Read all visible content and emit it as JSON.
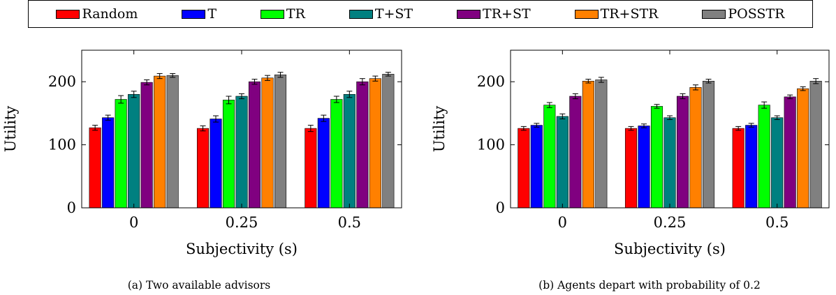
{
  "legend": [
    {
      "name": "Random",
      "color": "#ff0000"
    },
    {
      "name": "T",
      "color": "#0000ff"
    },
    {
      "name": "TR",
      "color": "#00ff00"
    },
    {
      "name": "T+ST",
      "color": "#008080"
    },
    {
      "name": "TR+ST",
      "color": "#800080"
    },
    {
      "name": "TR+STR",
      "color": "#ff8000"
    },
    {
      "name": "POSSTR",
      "color": "#808080"
    }
  ],
  "captions": {
    "a": "(a) Two available advisors",
    "b": "(b) Agents depart with probability of 0.2"
  },
  "chart_data": [
    {
      "type": "bar",
      "xlabel": "Subjectivity (s)",
      "ylabel": "Utility",
      "categories": [
        "0",
        "0.25",
        "0.5"
      ],
      "ylim": [
        0,
        250
      ],
      "yticks": [
        0,
        100,
        200
      ],
      "grid": false,
      "series": [
        {
          "name": "Random",
          "color": "#ff0000",
          "values": [
            127,
            126,
            126
          ],
          "errors": [
            4,
            4,
            5
          ]
        },
        {
          "name": "T",
          "color": "#0000ff",
          "values": [
            143,
            141,
            142
          ],
          "errors": [
            4,
            5,
            5
          ]
        },
        {
          "name": "TR",
          "color": "#00ff00",
          "values": [
            172,
            171,
            172
          ],
          "errors": [
            6,
            6,
            5
          ]
        },
        {
          "name": "T+ST",
          "color": "#008080",
          "values": [
            180,
            177,
            180
          ],
          "errors": [
            5,
            4,
            5
          ]
        },
        {
          "name": "TR+ST",
          "color": "#800080",
          "values": [
            199,
            200,
            200
          ],
          "errors": [
            4,
            4,
            5
          ]
        },
        {
          "name": "TR+STR",
          "color": "#ff8000",
          "values": [
            209,
            206,
            205
          ],
          "errors": [
            4,
            4,
            4
          ]
        },
        {
          "name": "POSSTR",
          "color": "#808080",
          "values": [
            210,
            211,
            212
          ],
          "errors": [
            3,
            4,
            3
          ]
        }
      ]
    },
    {
      "type": "bar",
      "xlabel": "Subjectivity (s)",
      "ylabel": "Utility",
      "categories": [
        "0",
        "0.25",
        "0.5"
      ],
      "ylim": [
        0,
        250
      ],
      "yticks": [
        0,
        100,
        200
      ],
      "grid": false,
      "series": [
        {
          "name": "Random",
          "color": "#ff0000",
          "values": [
            126,
            126,
            126
          ],
          "errors": [
            3,
            3,
            3
          ]
        },
        {
          "name": "T",
          "color": "#0000ff",
          "values": [
            131,
            130,
            131
          ],
          "errors": [
            3,
            3,
            3
          ]
        },
        {
          "name": "TR",
          "color": "#00ff00",
          "values": [
            163,
            161,
            163
          ],
          "errors": [
            4,
            3,
            5
          ]
        },
        {
          "name": "T+ST",
          "color": "#008080",
          "values": [
            145,
            143,
            143
          ],
          "errors": [
            4,
            3,
            3
          ]
        },
        {
          "name": "TR+ST",
          "color": "#800080",
          "values": [
            177,
            177,
            176
          ],
          "errors": [
            4,
            4,
            3
          ]
        },
        {
          "name": "TR+STR",
          "color": "#ff8000",
          "values": [
            201,
            191,
            189
          ],
          "errors": [
            3,
            4,
            3
          ]
        },
        {
          "name": "POSSTR",
          "color": "#808080",
          "values": [
            203,
            201,
            201
          ],
          "errors": [
            4,
            3,
            4
          ]
        }
      ]
    }
  ]
}
